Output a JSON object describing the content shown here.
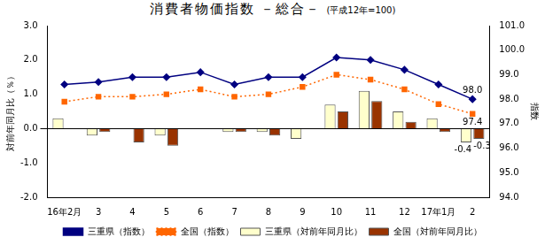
{
  "chart_data": {
    "type": "bar",
    "title": "消費者物価指数 －総合－",
    "subtitle": "(平成12年=100)",
    "y_label": "対前年同月比（％）",
    "y2_label": "指数",
    "categories": [
      "16年2月",
      "3",
      "4",
      "5",
      "6",
      "7",
      "8",
      "9",
      "10",
      "11",
      "12",
      "17年1月",
      "2"
    ],
    "ylim": [
      -2.0,
      3.0
    ],
    "yticks": [
      {
        "value": -2,
        "label": "-2.0"
      },
      {
        "value": -1,
        "label": "-1.0"
      },
      {
        "value": 0,
        "label": "0.0"
      },
      {
        "value": 1,
        "label": "1.0"
      },
      {
        "value": 2,
        "label": "2.0"
      },
      {
        "value": 3,
        "label": "3.0"
      }
    ],
    "y2lim": [
      94.0,
      101.0
    ],
    "y2ticks": [
      {
        "value": 94,
        "label": "94.0"
      },
      {
        "value": 95,
        "label": "95.0"
      },
      {
        "value": 96,
        "label": "96.0"
      },
      {
        "value": 97,
        "label": "97.0"
      },
      {
        "value": 98,
        "label": "98.0"
      },
      {
        "value": 99,
        "label": "99.0"
      },
      {
        "value": 100,
        "label": "100.0"
      },
      {
        "value": 101,
        "label": "101.0"
      }
    ],
    "grid": false,
    "legend": "bottom",
    "series": [
      {
        "name": "三重県（対前年同月比）",
        "type": "bar",
        "color": "#ffffcc",
        "values": [
          0.3,
          -0.2,
          0.0,
          -0.2,
          0.0,
          -0.1,
          -0.1,
          -0.3,
          0.7,
          1.1,
          0.5,
          0.3,
          -0.4
        ],
        "value_labels": [
          null,
          null,
          null,
          null,
          null,
          null,
          null,
          null,
          null,
          null,
          null,
          null,
          "-0.4"
        ]
      },
      {
        "name": "全国（対前年同月比）",
        "type": "bar",
        "color": "#993300",
        "values": [
          0.0,
          -0.1,
          -0.4,
          -0.5,
          0.0,
          -0.1,
          -0.2,
          0.0,
          0.5,
          0.8,
          0.2,
          -0.1,
          -0.3
        ],
        "value_labels": [
          null,
          null,
          null,
          null,
          null,
          null,
          null,
          null,
          null,
          null,
          null,
          null,
          "-0.3"
        ]
      },
      {
        "name": "三重県（指数）",
        "type": "line",
        "axis": "y2",
        "color": "#000080",
        "marker": "diamond",
        "line_style": "solid",
        "values": [
          98.6,
          98.7,
          98.9,
          98.9,
          99.1,
          98.6,
          98.9,
          98.9,
          99.7,
          99.6,
          99.2,
          98.6,
          98.0
        ],
        "value_labels": [
          null,
          null,
          null,
          null,
          null,
          null,
          null,
          null,
          null,
          null,
          null,
          null,
          "98.0"
        ]
      },
      {
        "name": "全国（指数）",
        "type": "line",
        "axis": "y2",
        "color": "#ff6600",
        "marker": "square",
        "line_style": "dotted",
        "values": [
          97.9,
          98.1,
          98.1,
          98.2,
          98.4,
          98.1,
          98.2,
          98.5,
          99.0,
          98.8,
          98.4,
          97.8,
          97.4
        ],
        "value_labels": [
          null,
          null,
          null,
          null,
          null,
          null,
          null,
          null,
          null,
          null,
          null,
          null,
          "97.4"
        ]
      }
    ]
  }
}
